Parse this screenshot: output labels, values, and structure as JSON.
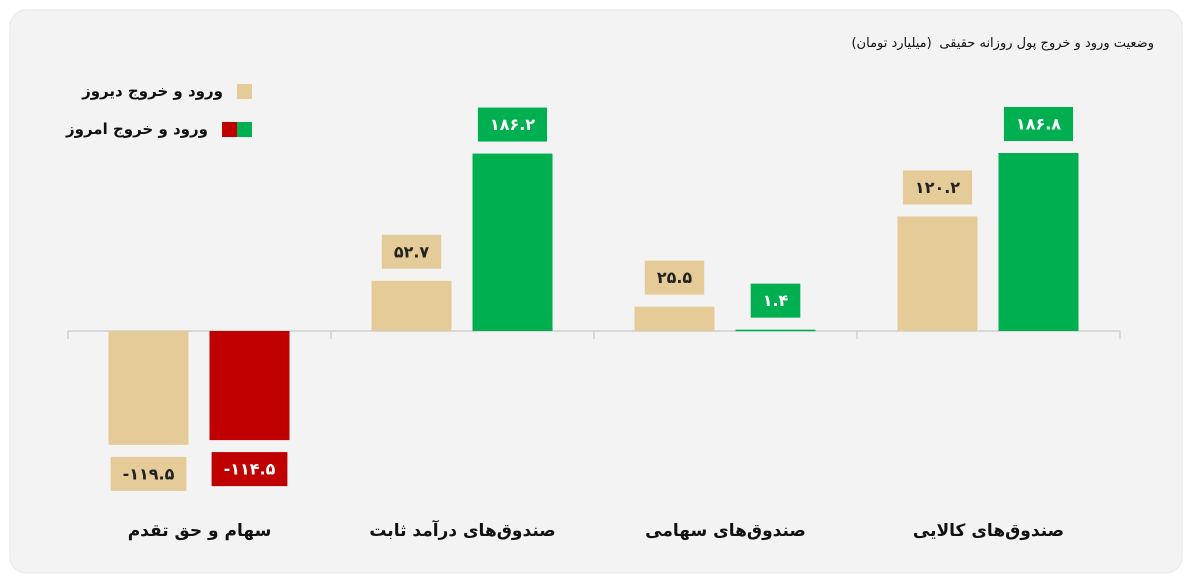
{
  "chart_data": {
    "type": "bar",
    "title": "وضعیت ورود و خروج پول روزانه حقیقی",
    "subtitle": "(میلیارد تومان)",
    "categories": [
      "سهام و حق تقدم",
      "صندوق‌های درآمد ثابت",
      "صندوق‌های سهامی",
      "صندوق‌های کالایی"
    ],
    "series": [
      {
        "name": "ورود و خروج دیروز",
        "color": "#e5cb98",
        "values": [
          -119.5,
          52.7,
          25.5,
          120.2
        ],
        "value_labels": [
          "-۱۱۹.۵",
          "۵۲.۷",
          "۲۵.۵",
          "۱۲۰.۲"
        ]
      },
      {
        "name": "ورود و خروج امروز",
        "color": "#00b050",
        "negative_color": "#c00000",
        "values": [
          -114.5,
          186.2,
          1.4,
          186.8
        ],
        "value_labels": [
          "-۱۱۴.۵",
          "۱۸۶.۲",
          "۱.۴",
          "۱۸۶.۸"
        ]
      }
    ]
  }
}
